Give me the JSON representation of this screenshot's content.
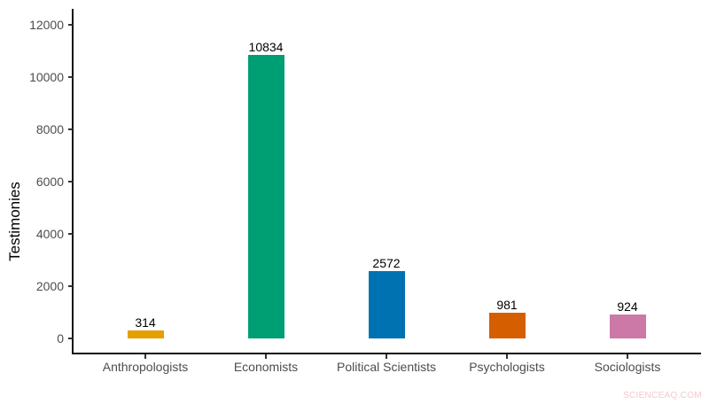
{
  "chart_data": {
    "type": "bar",
    "title": "",
    "xlabel": "",
    "ylabel": "Testimonies",
    "categories": [
      "Anthropologists",
      "Economists",
      "Political Scientists",
      "Psychologists",
      "Sociologists"
    ],
    "values": [
      314,
      10834,
      2572,
      981,
      924
    ],
    "data_labels": [
      "314",
      "10834",
      "2572",
      "981",
      "924"
    ],
    "colors": [
      "#E69F00",
      "#009E73",
      "#0072B2",
      "#D55E00",
      "#CC79A7"
    ],
    "ylim": [
      -550,
      12600
    ],
    "yticks": [
      0,
      2000,
      4000,
      6000,
      8000,
      10000,
      12000
    ],
    "ytick_labels": [
      "0",
      "2000",
      "4000",
      "6000",
      "8000",
      "10000",
      "12000"
    ],
    "grid": false,
    "legend": "none"
  },
  "watermark": "SCIENCEAQ.COM"
}
